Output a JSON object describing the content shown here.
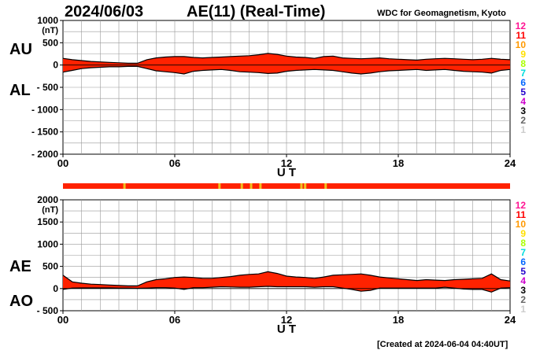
{
  "header": {
    "date": "2024/06/03",
    "title": "AE(11) (Real-Time)",
    "organization": "WDC for Geomagnetism, Kyoto"
  },
  "footer": {
    "created": "[Created at 2024-06-04 04:40UT]"
  },
  "colors": {
    "fill": "#ff2200",
    "highlight": "#f0c020",
    "grid": "#999999",
    "axis": "#000000"
  },
  "station_count_legend": [
    {
      "label": "12",
      "color": "#ff1493"
    },
    {
      "label": "11",
      "color": "#ff0000"
    },
    {
      "label": "10",
      "color": "#ff9900"
    },
    {
      "label": "9",
      "color": "#ffe000"
    },
    {
      "label": "8",
      "color": "#aaff00"
    },
    {
      "label": "7",
      "color": "#00dddd"
    },
    {
      "label": "6",
      "color": "#0066ff"
    },
    {
      "label": "5",
      "color": "#2200cc"
    },
    {
      "label": "4",
      "color": "#cc00cc"
    },
    {
      "label": "3",
      "color": "#000000"
    },
    {
      "label": "2",
      "color": "#666666"
    },
    {
      "label": "1",
      "color": "#cccccc"
    }
  ],
  "chart_data": [
    {
      "type": "area",
      "name": "AU/AL",
      "upper_label": "AU",
      "lower_label": "AL",
      "xlabel": "U T",
      "ylabel": "(nT)",
      "xlim": [
        0,
        24
      ],
      "ylim": [
        -2000,
        1000
      ],
      "x_ticks": [
        "00",
        "06",
        "12",
        "18",
        "24"
      ],
      "y_ticks": [
        "1000",
        "500",
        "0",
        "- 500",
        "- 1000",
        "- 1500",
        "- 2000"
      ],
      "series": [
        {
          "name": "AU",
          "x": [
            0,
            0.5,
            1,
            1.5,
            2,
            2.5,
            3,
            3.5,
            4,
            4.5,
            5,
            5.5,
            6,
            6.5,
            7,
            7.5,
            8,
            8.5,
            9,
            9.5,
            10,
            10.5,
            11,
            11.5,
            12,
            12.5,
            13,
            13.5,
            14,
            14.5,
            15,
            15.5,
            16,
            16.5,
            17,
            17.5,
            18,
            18.5,
            19,
            19.5,
            20,
            20.5,
            21,
            21.5,
            22,
            22.5,
            23,
            23.5,
            24
          ],
          "values": [
            150,
            120,
            100,
            80,
            70,
            60,
            50,
            40,
            40,
            120,
            160,
            180,
            190,
            190,
            170,
            160,
            170,
            180,
            190,
            200,
            210,
            230,
            260,
            240,
            200,
            180,
            170,
            150,
            190,
            200,
            160,
            150,
            140,
            150,
            160,
            140,
            130,
            120,
            110,
            130,
            140,
            150,
            140,
            130,
            120,
            130,
            150,
            130,
            120
          ]
        },
        {
          "name": "AL",
          "x": [
            0,
            0.5,
            1,
            1.5,
            2,
            2.5,
            3,
            3.5,
            4,
            4.5,
            5,
            5.5,
            6,
            6.5,
            7,
            7.5,
            8,
            8.5,
            9,
            9.5,
            10,
            10.5,
            11,
            11.5,
            12,
            12.5,
            13,
            13.5,
            14,
            14.5,
            15,
            15.5,
            16,
            16.5,
            17,
            17.5,
            18,
            18.5,
            19,
            19.5,
            20,
            20.5,
            21,
            21.5,
            22,
            22.5,
            23,
            23.5,
            24
          ],
          "values": [
            -160,
            -120,
            -80,
            -60,
            -50,
            -40,
            -40,
            -30,
            -30,
            -80,
            -130,
            -150,
            -170,
            -200,
            -140,
            -120,
            -110,
            -100,
            -120,
            -150,
            -160,
            -170,
            -190,
            -180,
            -140,
            -120,
            -110,
            -100,
            -110,
            -120,
            -150,
            -180,
            -200,
            -180,
            -150,
            -130,
            -120,
            -110,
            -100,
            -120,
            -110,
            -100,
            -120,
            -140,
            -150,
            -160,
            -180,
            -120,
            -100
          ]
        }
      ],
      "station_bar": {
        "default_count": "11",
        "highlight_count": "10",
        "highlight_hours": [
          3.3,
          8.4,
          9.6,
          10.1,
          10.6,
          12.8,
          13.0,
          14.1
        ]
      }
    },
    {
      "type": "area",
      "name": "AE/AO",
      "upper_label": "AE",
      "lower_label": "AO",
      "xlabel": "U T",
      "ylabel": "(nT)",
      "xlim": [
        0,
        24
      ],
      "ylim": [
        -500,
        2000
      ],
      "x_ticks": [
        "00",
        "06",
        "12",
        "18",
        "24"
      ],
      "y_ticks": [
        "2000",
        "1500",
        "1000",
        "500",
        "0",
        "- 500"
      ],
      "series": [
        {
          "name": "AE",
          "x": [
            0,
            0.5,
            1,
            1.5,
            2,
            2.5,
            3,
            3.5,
            4,
            4.5,
            5,
            5.5,
            6,
            6.5,
            7,
            7.5,
            8,
            8.5,
            9,
            9.5,
            10,
            10.5,
            11,
            11.5,
            12,
            12.5,
            13,
            13.5,
            14,
            14.5,
            15,
            15.5,
            16,
            16.5,
            17,
            17.5,
            18,
            18.5,
            19,
            19.5,
            20,
            20.5,
            21,
            21.5,
            22,
            22.5,
            23,
            23.5,
            24
          ],
          "values": [
            300,
            150,
            120,
            100,
            90,
            80,
            70,
            60,
            60,
            150,
            200,
            220,
            250,
            260,
            250,
            230,
            230,
            250,
            270,
            300,
            320,
            330,
            380,
            340,
            280,
            260,
            250,
            230,
            260,
            300,
            310,
            320,
            330,
            300,
            260,
            240,
            220,
            200,
            180,
            200,
            190,
            180,
            200,
            210,
            220,
            230,
            330,
            200,
            170
          ]
        },
        {
          "name": "AO",
          "x": [
            0,
            0.5,
            1,
            1.5,
            2,
            2.5,
            3,
            3.5,
            4,
            4.5,
            5,
            5.5,
            6,
            6.5,
            7,
            7.5,
            8,
            8.5,
            9,
            9.5,
            10,
            10.5,
            11,
            11.5,
            12,
            12.5,
            13,
            13.5,
            14,
            14.5,
            15,
            15.5,
            16,
            16.5,
            17,
            17.5,
            18,
            18.5,
            19,
            19.5,
            20,
            20.5,
            21,
            21.5,
            22,
            22.5,
            23,
            23.5,
            24
          ],
          "values": [
            -20,
            10,
            15,
            15,
            15,
            15,
            10,
            10,
            5,
            10,
            20,
            20,
            10,
            -20,
            20,
            20,
            30,
            40,
            35,
            30,
            30,
            40,
            50,
            40,
            40,
            40,
            40,
            30,
            40,
            40,
            10,
            -20,
            -60,
            -40,
            10,
            10,
            10,
            10,
            10,
            10,
            10,
            30,
            10,
            -10,
            -20,
            -20,
            -80,
            10,
            20
          ]
        }
      ],
      "station_bar": null
    }
  ]
}
